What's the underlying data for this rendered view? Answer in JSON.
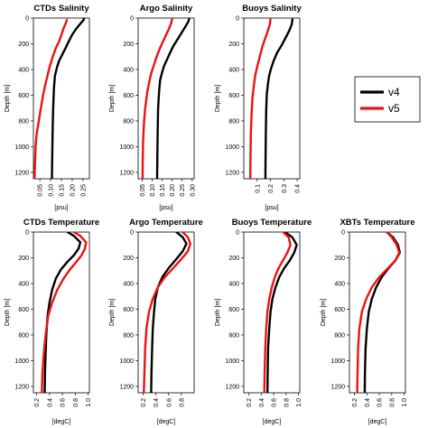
{
  "chart_data": [
    {
      "type": "line",
      "title": "CTDs Salinity",
      "ylabel": "Depth [m]",
      "xlabel": "[psu]",
      "xlim": [
        0.02,
        0.28
      ],
      "xticks": [
        0.05,
        0.1,
        0.15,
        0.2,
        0.25
      ],
      "xticklabels": [
        "0.05",
        "0.10",
        "0.15",
        "0.20",
        "0.25"
      ],
      "ylim": [
        1250,
        0
      ],
      "yticks": [
        0,
        200,
        400,
        600,
        800,
        1000,
        1200
      ],
      "yticklabels": [
        "0",
        "200",
        "400",
        "600",
        "800",
        "1000",
        "1200"
      ],
      "series": [
        {
          "name": "v4",
          "color": "#000000",
          "x": [
            0.255,
            0.253,
            0.24,
            0.22,
            0.2,
            0.185,
            0.17,
            0.155,
            0.14,
            0.13,
            0.12,
            0.115,
            0.112,
            0.11,
            0.108,
            0.107,
            0.106
          ],
          "y": [
            0,
            15,
            40,
            80,
            130,
            180,
            230,
            280,
            330,
            380,
            450,
            550,
            700,
            800,
            1000,
            1150,
            1250
          ]
        },
        {
          "name": "v5",
          "color": "#ee1111",
          "x": [
            0.175,
            0.17,
            0.16,
            0.15,
            0.14,
            0.125,
            0.11,
            0.095,
            0.085,
            0.075,
            0.065,
            0.055,
            0.045,
            0.035,
            0.03,
            0.027,
            0.025
          ],
          "y": [
            15,
            40,
            80,
            130,
            180,
            230,
            300,
            380,
            450,
            520,
            600,
            700,
            800,
            900,
            1000,
            1150,
            1250
          ]
        }
      ]
    },
    {
      "type": "line",
      "title": "Argo Salinity",
      "ylabel": "Depth [m]",
      "xlabel": "[psu]",
      "xlim": [
        0.03,
        0.31
      ],
      "xticks": [
        0.05,
        0.1,
        0.15,
        0.2,
        0.25,
        0.3
      ],
      "xticklabels": [
        "0.05",
        "0.10",
        "0.15",
        "0.20",
        "0.25",
        "0.30"
      ],
      "ylim": [
        1250,
        0
      ],
      "yticks": [
        0,
        200,
        400,
        600,
        800,
        1000,
        1200
      ],
      "yticklabels": [
        "0",
        "200",
        "400",
        "600",
        "800",
        "1000",
        "1200"
      ],
      "series": [
        {
          "name": "v4",
          "color": "#000000",
          "x": [
            0.285,
            0.28,
            0.265,
            0.245,
            0.225,
            0.205,
            0.19,
            0.175,
            0.16,
            0.15,
            0.14,
            0.135,
            0.13,
            0.128,
            0.126,
            0.125
          ],
          "y": [
            5,
            30,
            70,
            120,
            170,
            220,
            270,
            320,
            370,
            420,
            480,
            560,
            700,
            850,
            1050,
            1250
          ]
        },
        {
          "name": "v5",
          "color": "#ee1111",
          "x": [
            0.2,
            0.195,
            0.185,
            0.17,
            0.155,
            0.14,
            0.125,
            0.11,
            0.095,
            0.085,
            0.075,
            0.065,
            0.06,
            0.055,
            0.053,
            0.052
          ],
          "y": [
            10,
            40,
            80,
            130,
            180,
            230,
            290,
            360,
            430,
            500,
            580,
            700,
            800,
            950,
            1100,
            1250
          ]
        }
      ]
    },
    {
      "type": "line",
      "title": "Buoys Salinity",
      "ylabel": "Depth [m]",
      "xlabel": "[psu]",
      "xlim": [
        0.0,
        0.42
      ],
      "xticks": [
        0.1,
        0.2,
        0.3,
        0.4
      ],
      "xticklabels": [
        "0.1",
        "0.2",
        "0.3",
        "0.4"
      ],
      "ylim": [
        1250,
        0
      ],
      "yticks": [
        0,
        200,
        400,
        600,
        800,
        1000,
        1200
      ],
      "yticklabels": [
        "0",
        "200",
        "400",
        "600",
        "800",
        "1000",
        "1200"
      ],
      "series": [
        {
          "name": "v4",
          "color": "#000000",
          "x": [
            0.365,
            0.36,
            0.34,
            0.31,
            0.28,
            0.25,
            0.225,
            0.205,
            0.19,
            0.18,
            0.172,
            0.168,
            0.165,
            0.163,
            0.162
          ],
          "y": [
            10,
            50,
            100,
            160,
            220,
            270,
            330,
            390,
            450,
            520,
            600,
            720,
            900,
            1100,
            1250
          ]
        },
        {
          "name": "v5",
          "color": "#ee1111",
          "x": [
            0.2,
            0.195,
            0.18,
            0.16,
            0.14,
            0.12,
            0.1,
            0.085,
            0.075,
            0.065,
            0.058,
            0.053,
            0.05,
            0.049
          ],
          "y": [
            10,
            50,
            100,
            160,
            220,
            300,
            380,
            450,
            530,
            620,
            750,
            900,
            1100,
            1250
          ]
        }
      ]
    },
    {
      "type": "line",
      "title": "CTDs Temperature",
      "ylabel": "Depth [m]",
      "xlabel": "[degC]",
      "xlim": [
        0.15,
        1.02
      ],
      "xticks": [
        0.2,
        0.4,
        0.6,
        0.8,
        1.0
      ],
      "xticklabels": [
        "0.2",
        "0.4",
        "0.6",
        "0.8",
        "1.0"
      ],
      "ylim": [
        1250,
        0
      ],
      "yticks": [
        0,
        200,
        400,
        600,
        800,
        1000,
        1200
      ],
      "yticklabels": [
        "0",
        "200",
        "400",
        "600",
        "800",
        "1000",
        "1200"
      ],
      "series": [
        {
          "name": "v4",
          "color": "#000000",
          "x": [
            0.68,
            0.78,
            0.88,
            0.85,
            0.78,
            0.68,
            0.58,
            0.5,
            0.44,
            0.4,
            0.37,
            0.35,
            0.34,
            0.33,
            0.325
          ],
          "y": [
            0,
            30,
            80,
            130,
            180,
            230,
            290,
            360,
            450,
            550,
            650,
            800,
            950,
            1100,
            1250
          ]
        },
        {
          "name": "v5",
          "color": "#ee1111",
          "x": [
            0.78,
            0.88,
            0.97,
            0.95,
            0.9,
            0.82,
            0.72,
            0.62,
            0.52,
            0.44,
            0.38,
            0.34,
            0.31,
            0.29,
            0.28
          ],
          "y": [
            0,
            30,
            80,
            130,
            180,
            230,
            290,
            360,
            450,
            550,
            650,
            800,
            950,
            1100,
            1250
          ]
        }
      ]
    },
    {
      "type": "line",
      "title": "Argo Temperature",
      "ylabel": "Depth [m]",
      "xlabel": "[degC]",
      "xlim": [
        0.12,
        1.0
      ],
      "xticks": [
        0.2,
        0.4,
        0.6,
        0.8
      ],
      "xticklabels": [
        "0.2",
        "0.4",
        "0.6",
        "0.8"
      ],
      "ylim": [
        1250,
        0
      ],
      "yticks": [
        0,
        200,
        400,
        600,
        800,
        1000,
        1200
      ],
      "yticklabels": [
        "0",
        "200",
        "400",
        "600",
        "800",
        "1000",
        "1200"
      ],
      "series": [
        {
          "name": "v4",
          "color": "#000000",
          "x": [
            0.72,
            0.82,
            0.88,
            0.82,
            0.72,
            0.6,
            0.5,
            0.43,
            0.39,
            0.37,
            0.35,
            0.34,
            0.33,
            0.325
          ],
          "y": [
            0,
            40,
            90,
            150,
            210,
            280,
            350,
            430,
            520,
            620,
            750,
            900,
            1080,
            1250
          ]
        },
        {
          "name": "v5",
          "color": "#ee1111",
          "x": [
            0.82,
            0.9,
            0.94,
            0.9,
            0.8,
            0.67,
            0.54,
            0.43,
            0.35,
            0.29,
            0.25,
            0.23,
            0.22,
            0.21
          ],
          "y": [
            0,
            40,
            90,
            150,
            210,
            280,
            350,
            430,
            520,
            620,
            750,
            900,
            1080,
            1250
          ]
        }
      ]
    },
    {
      "type": "line",
      "title": "Buoys Temperature",
      "ylabel": "Depth [m]",
      "xlabel": "[degC]",
      "xlim": [
        0.12,
        1.02
      ],
      "xticks": [
        0.2,
        0.4,
        0.6,
        0.8,
        1.0
      ],
      "xticklabels": [
        "0.2",
        "0.4",
        "0.6",
        "0.8",
        "1.0"
      ],
      "ylim": [
        1250,
        0
      ],
      "yticks": [
        0,
        200,
        400,
        600,
        800,
        1000,
        1200
      ],
      "yticklabels": [
        "0",
        "200",
        "400",
        "600",
        "800",
        "1000",
        "1200"
      ],
      "series": [
        {
          "name": "v4",
          "color": "#000000",
          "x": [
            0.78,
            0.9,
            0.97,
            0.93,
            0.86,
            0.77,
            0.69,
            0.63,
            0.58,
            0.55,
            0.53,
            0.51,
            0.505,
            0.5
          ],
          "y": [
            0,
            40,
            100,
            160,
            220,
            280,
            350,
            430,
            520,
            620,
            750,
            900,
            1080,
            1250
          ]
        },
        {
          "name": "v5",
          "color": "#ee1111",
          "x": [
            0.75,
            0.84,
            0.87,
            0.82,
            0.75,
            0.68,
            0.62,
            0.57,
            0.53,
            0.5,
            0.48,
            0.465,
            0.455,
            0.45
          ],
          "y": [
            0,
            40,
            100,
            160,
            220,
            280,
            350,
            430,
            520,
            620,
            750,
            900,
            1080,
            1250
          ]
        }
      ]
    },
    {
      "type": "line",
      "title": "XBTs Temperature",
      "ylabel": "Depth [m]",
      "xlabel": "[degC]",
      "xlim": [
        0.12,
        1.02
      ],
      "xticks": [
        0.2,
        0.4,
        0.6,
        0.8,
        1.0
      ],
      "xticklabels": [
        "0.2",
        "0.4",
        "0.6",
        "0.8",
        "1.0"
      ],
      "ylim": [
        1250,
        0
      ],
      "yticks": [
        0,
        200,
        400,
        600,
        800,
        1000,
        1200
      ],
      "yticklabels": [
        "0",
        "200",
        "400",
        "600",
        "800",
        "1000",
        "1200"
      ],
      "series": [
        {
          "name": "v4",
          "color": "#000000",
          "x": [
            0.72,
            0.82,
            0.9,
            0.93,
            0.86,
            0.75,
            0.64,
            0.55,
            0.48,
            0.43,
            0.4,
            0.38,
            0.37,
            0.365
          ],
          "y": [
            0,
            40,
            100,
            160,
            220,
            280,
            350,
            430,
            520,
            620,
            750,
            900,
            1080,
            1250
          ]
        },
        {
          "name": "v5",
          "color": "#ee1111",
          "x": [
            0.72,
            0.8,
            0.88,
            0.92,
            0.86,
            0.74,
            0.6,
            0.48,
            0.39,
            0.32,
            0.28,
            0.26,
            0.25,
            0.245
          ],
          "y": [
            0,
            40,
            100,
            160,
            220,
            280,
            350,
            430,
            520,
            620,
            750,
            900,
            1080,
            1250
          ]
        }
      ]
    }
  ],
  "legend": {
    "items": [
      {
        "label": "v4",
        "color": "#000000"
      },
      {
        "label": "v5",
        "color": "#ee1111"
      }
    ]
  }
}
